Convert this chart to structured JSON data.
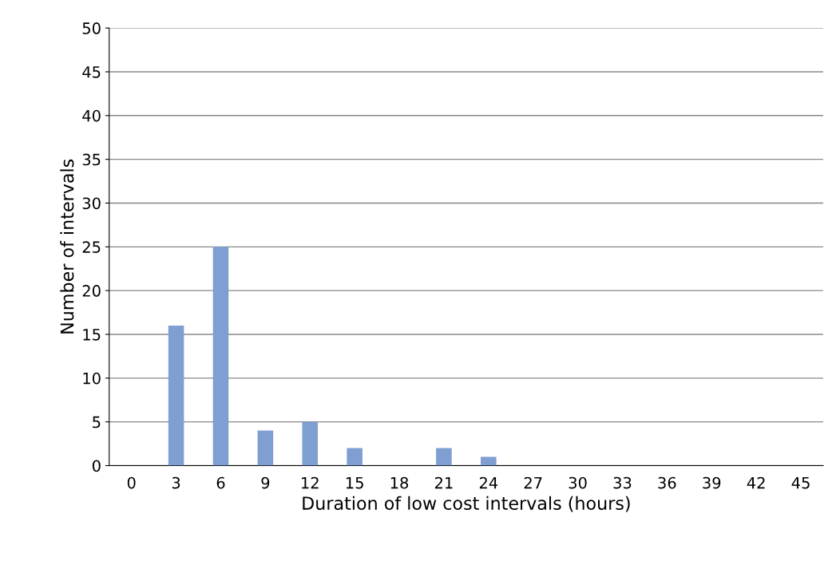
{
  "chart_data": {
    "type": "bar",
    "xlabel": "Duration of low cost intervals (hours)",
    "ylabel": "Number of intervals",
    "categories": [
      "0",
      "3",
      "6",
      "9",
      "12",
      "15",
      "18",
      "21",
      "24",
      "27",
      "30",
      "33",
      "36",
      "39",
      "42",
      "45"
    ],
    "values": [
      0,
      16,
      25,
      4,
      5,
      2,
      0,
      2,
      1,
      0,
      0,
      0,
      0,
      0,
      0,
      0
    ],
    "color": "#7f9ed2",
    "ylim": [
      0,
      50
    ],
    "yticks": [
      0,
      5,
      10,
      15,
      20,
      25,
      30,
      35,
      40,
      45,
      50
    ],
    "grid": "y"
  }
}
